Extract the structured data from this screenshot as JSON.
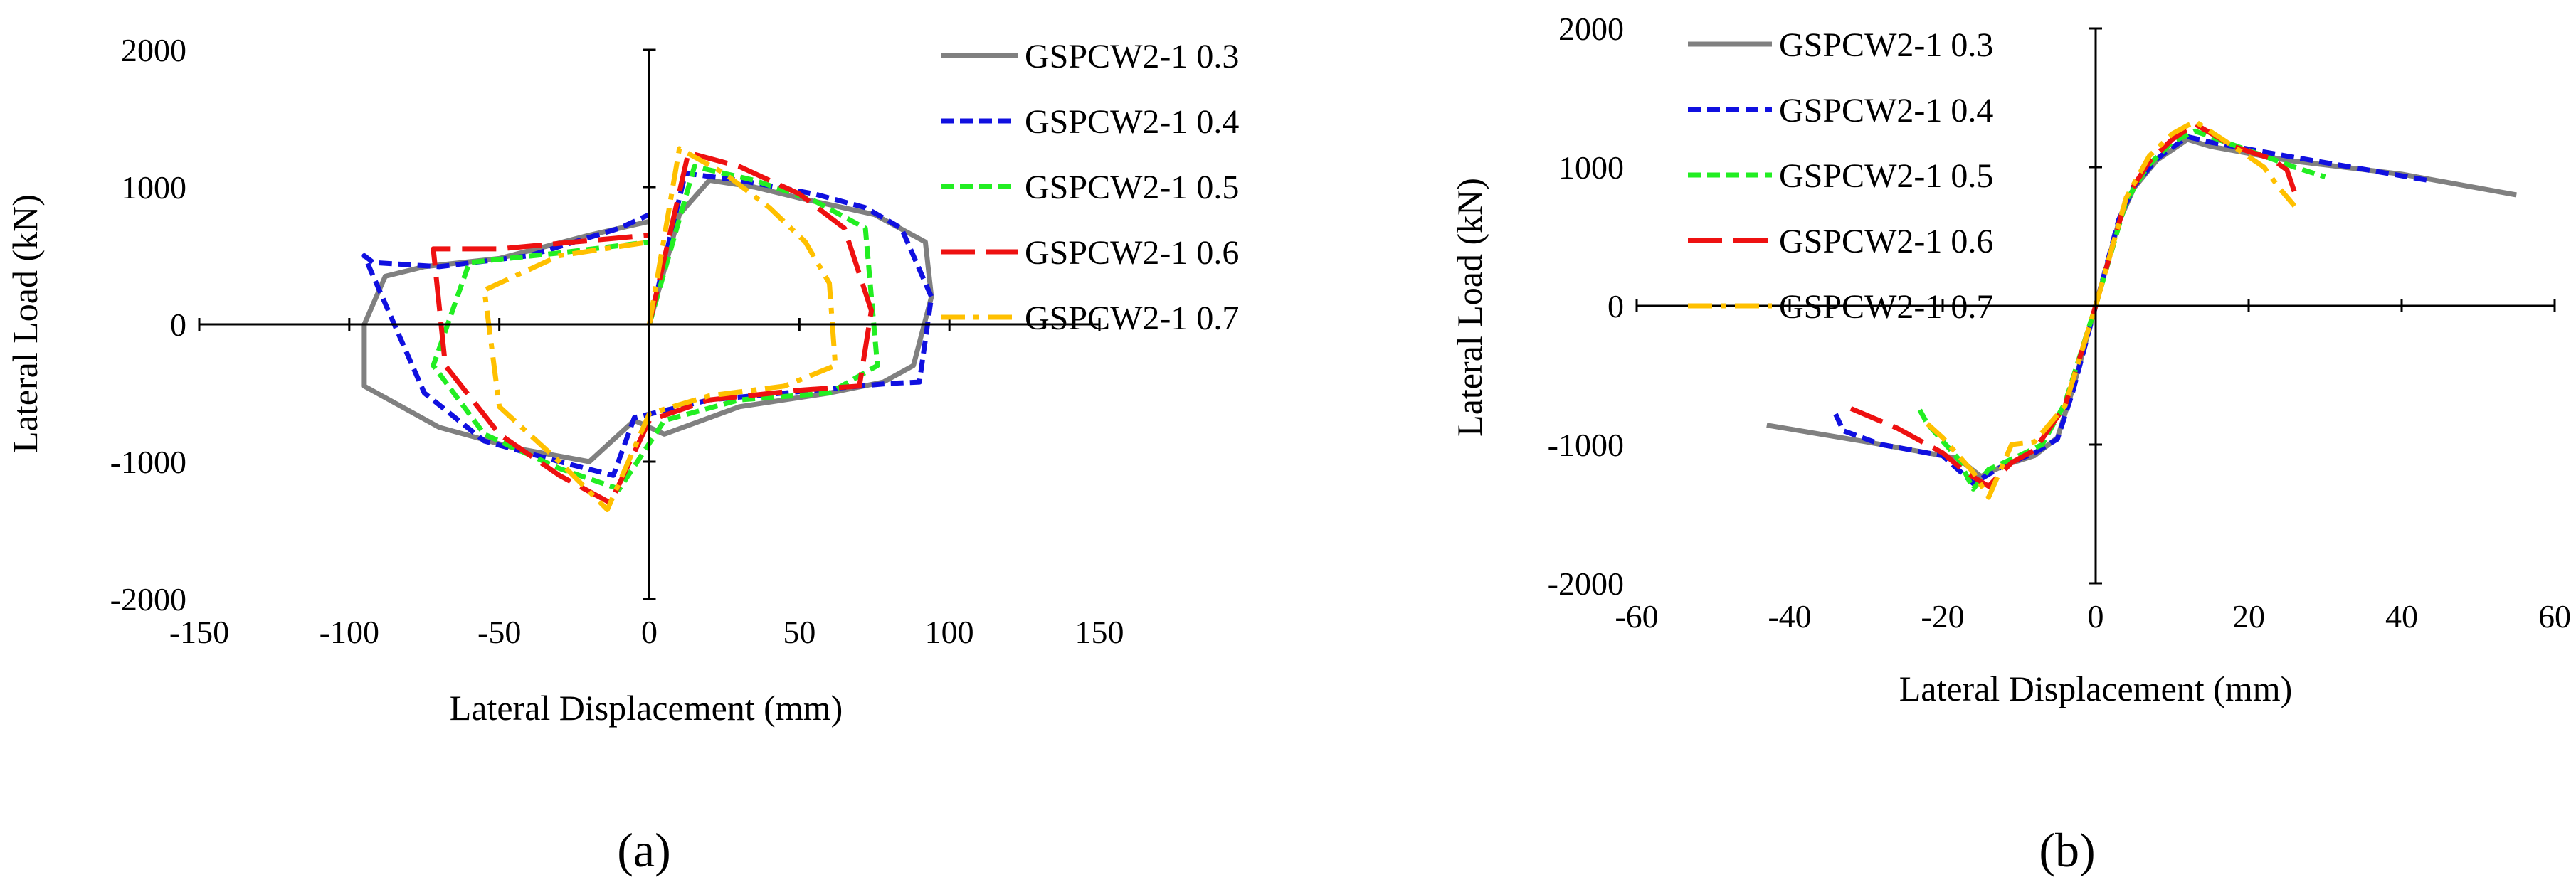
{
  "chart_data": [
    {
      "type": "line",
      "panel_label": "(a)",
      "xlabel": "Lateral Displacement (mm)",
      "ylabel": "Lateral Load (kN)",
      "xlim": [
        -150,
        150
      ],
      "ylim": [
        -2000,
        2000
      ],
      "xticks": [
        -150,
        -100,
        -50,
        0,
        50,
        100,
        150
      ],
      "yticks": [
        -2000,
        -1000,
        0,
        1000,
        2000
      ],
      "legend_position": "top-right",
      "series": [
        {
          "name": "GSPCW2-1 0.3",
          "color": "#808080",
          "style": "solid",
          "x": [
            0,
            10,
            20,
            35,
            50,
            75,
            92,
            94,
            88,
            78,
            60,
            30,
            5,
            -5,
            -20,
            -45,
            -70,
            -95,
            -95,
            -88,
            -75,
            -50,
            -20,
            0
          ],
          "y": [
            0,
            800,
            1050,
            1000,
            920,
            800,
            600,
            200,
            -300,
            -420,
            -500,
            -600,
            -800,
            -700,
            -1000,
            -900,
            -750,
            -450,
            0,
            350,
            420,
            480,
            650,
            750
          ]
        },
        {
          "name": "GSPCW2-1 0.4",
          "color": "#1010e0",
          "style": "dashed",
          "x": [
            0,
            12,
            30,
            55,
            72,
            84,
            94,
            90,
            80,
            55,
            20,
            -5,
            -12,
            -30,
            -55,
            -75,
            -95,
            -92,
            -70,
            -40,
            -10,
            0
          ],
          "y": [
            0,
            1100,
            1050,
            950,
            850,
            700,
            200,
            -420,
            -430,
            -480,
            -550,
            -680,
            -1100,
            -1000,
            -850,
            -500,
            500,
            450,
            420,
            500,
            700,
            800
          ]
        },
        {
          "name": "GSPCW2-1 0.5",
          "color": "#22ee22",
          "style": "dashed",
          "x": [
            0,
            15,
            35,
            55,
            72,
            76,
            60,
            30,
            5,
            -10,
            -30,
            -55,
            -72,
            -60,
            -30,
            0
          ],
          "y": [
            0,
            1150,
            1050,
            900,
            700,
            -300,
            -500,
            -550,
            -700,
            -1200,
            -1050,
            -800,
            -300,
            450,
            520,
            600
          ]
        },
        {
          "name": "GSPCW2-1 0.6",
          "color": "#ee1111",
          "style": "longdash",
          "x": [
            0,
            13,
            30,
            50,
            65,
            74,
            70,
            50,
            20,
            0,
            -13,
            -30,
            -50,
            -68,
            -72,
            -50,
            -25,
            0
          ],
          "y": [
            0,
            1250,
            1150,
            950,
            700,
            100,
            -450,
            -480,
            -550,
            -700,
            -1300,
            -1100,
            -800,
            -300,
            550,
            550,
            600,
            650
          ]
        },
        {
          "name": "GSPCW2-1 0.7",
          "color": "#ffc000",
          "style": "dashdot",
          "x": [
            0,
            10,
            25,
            40,
            52,
            60,
            62,
            45,
            20,
            0,
            -14,
            -30,
            -50,
            -55,
            -30,
            0
          ],
          "y": [
            0,
            1280,
            1100,
            850,
            600,
            300,
            -300,
            -450,
            -520,
            -650,
            -1350,
            -1000,
            -600,
            250,
            500,
            600
          ]
        }
      ]
    },
    {
      "type": "line",
      "panel_label": "(b)",
      "xlabel": "Lateral Displacement (mm)",
      "ylabel": "Lateral Load (kN)",
      "xlim": [
        -60,
        60
      ],
      "ylim": [
        -2000,
        2000
      ],
      "xticks": [
        -60,
        -40,
        -20,
        0,
        20,
        40,
        60
      ],
      "yticks": [
        -2000,
        -1000,
        0,
        1000,
        2000
      ],
      "legend_position": "top-left",
      "series": [
        {
          "name": "GSPCW2-1 0.3",
          "color": "#808080",
          "style": "solid",
          "x": [
            -43,
            -30,
            -18,
            -15,
            -12,
            -8,
            -5,
            -3,
            0,
            3,
            5,
            8,
            12,
            15,
            25,
            40,
            55
          ],
          "y": [
            -860,
            -980,
            -1100,
            -1230,
            -1150,
            -1080,
            -950,
            -600,
            0,
            600,
            850,
            1050,
            1200,
            1150,
            1050,
            950,
            800
          ]
        },
        {
          "name": "GSPCW2-1 0.4",
          "color": "#1010e0",
          "style": "dashed",
          "x": [
            -34,
            -33,
            -28,
            -20,
            -16,
            -12,
            -8,
            -5,
            -3,
            0,
            3,
            5,
            8,
            12,
            15,
            25,
            44
          ],
          "y": [
            -780,
            -900,
            -1000,
            -1080,
            -1280,
            -1150,
            -1060,
            -960,
            -620,
            0,
            620,
            860,
            1060,
            1220,
            1180,
            1080,
            900
          ]
        },
        {
          "name": "GSPCW2-1 0.5",
          "color": "#22ee22",
          "style": "dashed",
          "x": [
            -23,
            -22,
            -18,
            -16,
            -14,
            -10,
            -7,
            -4,
            0,
            4,
            7,
            10,
            13,
            20,
            26,
            30
          ],
          "y": [
            -750,
            -850,
            -1100,
            -1320,
            -1180,
            -1080,
            -1000,
            -700,
            0,
            760,
            1020,
            1180,
            1260,
            1120,
            1000,
            930
          ]
        },
        {
          "name": "GSPCW2-1 0.6",
          "color": "#ee1111",
          "style": "longdash",
          "x": [
            -32,
            -26,
            -20,
            -17,
            -14,
            -11,
            -8,
            -4,
            0,
            4,
            7,
            10,
            13,
            18,
            23,
            25,
            26
          ],
          "y": [
            -740,
            -880,
            -1060,
            -1200,
            -1300,
            -1130,
            -1040,
            -720,
            0,
            780,
            1040,
            1200,
            1310,
            1150,
            1060,
            980,
            820
          ]
        },
        {
          "name": "GSPCW2-1 0.7",
          "color": "#ffc000",
          "style": "dashdot",
          "x": [
            -22,
            -20,
            -16,
            -14,
            -11,
            -8,
            -4,
            0,
            4,
            7,
            10,
            13,
            18,
            22,
            24,
            26
          ],
          "y": [
            -850,
            -950,
            -1200,
            -1380,
            -1000,
            -980,
            -720,
            0,
            780,
            1080,
            1240,
            1330,
            1150,
            1000,
            850,
            720
          ]
        }
      ]
    }
  ]
}
